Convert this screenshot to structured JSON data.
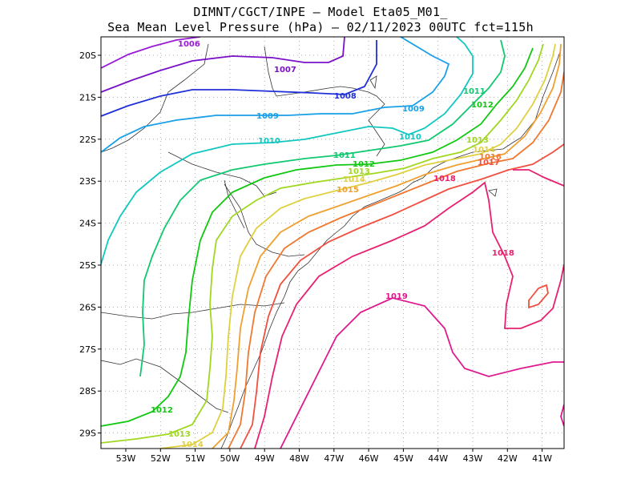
{
  "title": {
    "line1": "DIMNT/CGCT/INPE –  Model Eta05_M01_",
    "line2": "Sea Mean Level Pressure (hPa) – 02/11/2023 00UTC fct=115h"
  },
  "axes": {
    "lon_labels": [
      "53W",
      "52W",
      "51W",
      "50W",
      "49W",
      "48W",
      "47W",
      "46W",
      "45W",
      "44W",
      "43W",
      "42W",
      "41W"
    ],
    "lat_labels": [
      "20S",
      "21S",
      "22S",
      "23S",
      "24S",
      "25S",
      "26S",
      "27S",
      "28S",
      "29S"
    ]
  },
  "chart_data": {
    "type": "contour",
    "title": "Sea Mean Level Pressure (hPa) – 02/11/2023 00UTC fct=115h",
    "model": "Eta05_M01_",
    "units": "hPa",
    "extent": {
      "lon_range": [
        -53.7,
        -40.5
      ],
      "lat_range": [
        -29.4,
        -19.8
      ]
    },
    "isobar_levels": [
      1006,
      1007,
      1008,
      1009,
      1010,
      1011,
      1012,
      1013,
      1014,
      1015,
      1016,
      1017,
      1018,
      1019
    ],
    "contour_labels": [
      "1006",
      "1007",
      "1008",
      "1009",
      "1010",
      "1011",
      "1012",
      "1013",
      "1014",
      "1015",
      "1016",
      "1017",
      "1018",
      "1019",
      "1009",
      "1010",
      "1011",
      "1012",
      "1013",
      "1014",
      "1012",
      "1013",
      "1014",
      "1015",
      "1016",
      "1018"
    ],
    "colors": {
      "1006": "#9a1bd6",
      "1007": "#7a10c8",
      "1008": "#2030d8",
      "1009": "#18a0e8",
      "1010": "#10c8c0",
      "1011": "#10c870",
      "1012": "#10c810",
      "1013": "#a0d820",
      "1014": "#e0d040",
      "1015": "#f0a030",
      "1016": "#f07830",
      "1017": "#f05040",
      "1018": "#e82070",
      "1019": "#e01890"
    }
  }
}
